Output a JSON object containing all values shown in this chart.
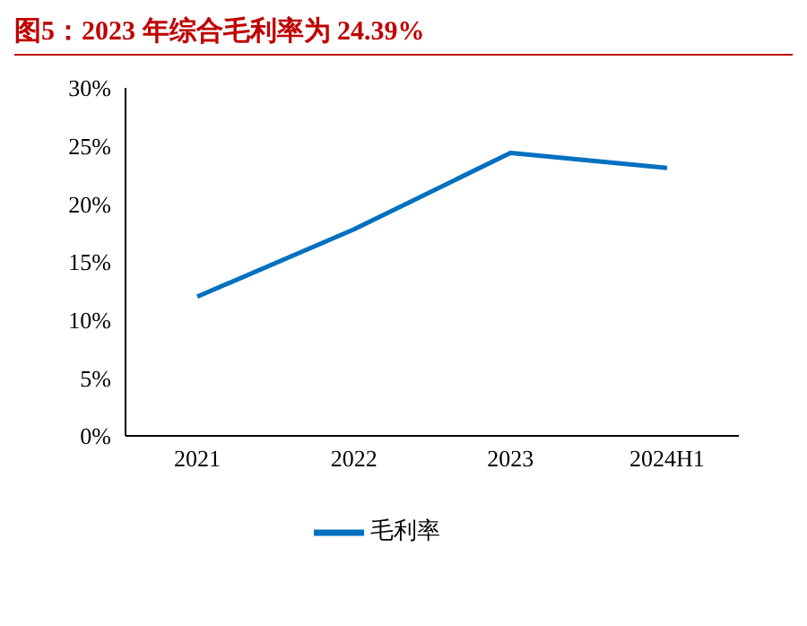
{
  "chart_data": {
    "type": "line",
    "title": "图5：2023 年综合毛利率为 24.39%",
    "categories": [
      "2021",
      "2022",
      "2023",
      "2024H1"
    ],
    "series": [
      {
        "name": "毛利率",
        "color": "#0070c0",
        "values": [
          12.0,
          17.8,
          24.4,
          23.1
        ]
      }
    ],
    "ylim": [
      0,
      30
    ],
    "yticks": [
      {
        "value": 0,
        "label": "0%"
      },
      {
        "value": 5,
        "label": "5%"
      },
      {
        "value": 10,
        "label": "10%"
      },
      {
        "value": 15,
        "label": "15%"
      },
      {
        "value": 20,
        "label": "20%"
      },
      {
        "value": 25,
        "label": "25%"
      },
      {
        "value": 30,
        "label": "30%"
      }
    ],
    "grid": false,
    "legend": "bottom",
    "marker": "none",
    "line_style": "solid"
  }
}
